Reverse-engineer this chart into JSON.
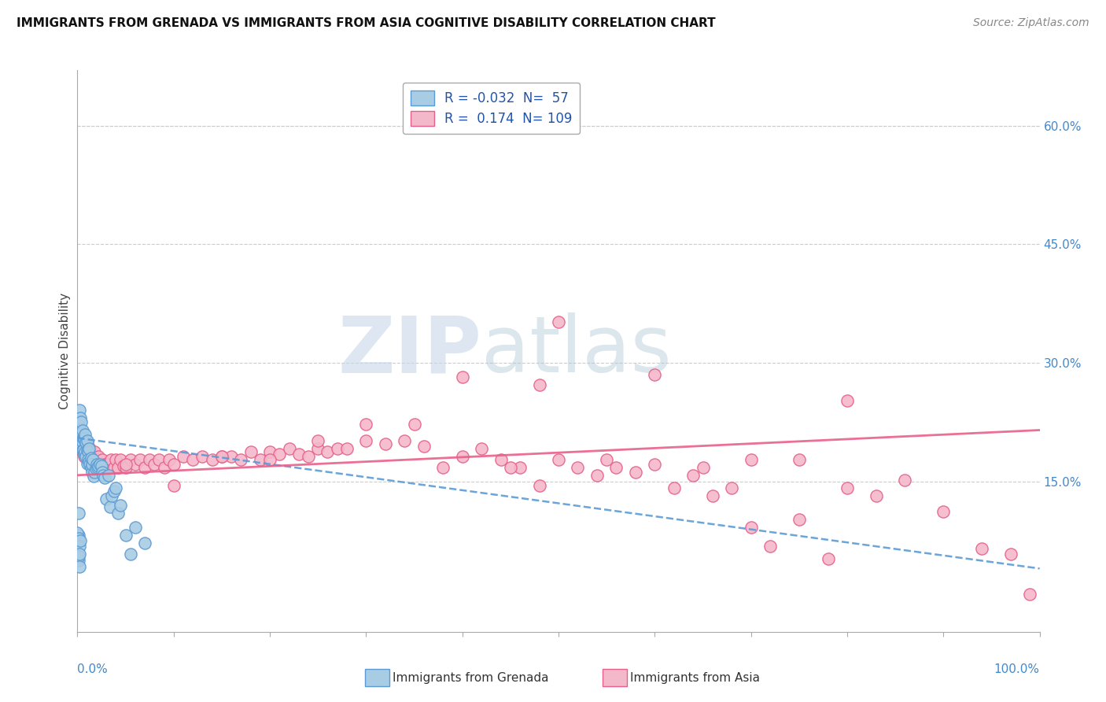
{
  "title": "IMMIGRANTS FROM GRENADA VS IMMIGRANTS FROM ASIA COGNITIVE DISABILITY CORRELATION CHART",
  "source": "Source: ZipAtlas.com",
  "ylabel": "Cognitive Disability",
  "y_ticks_right": [
    0.0,
    0.15,
    0.3,
    0.45,
    0.6
  ],
  "y_tick_labels_right": [
    "",
    "15.0%",
    "30.0%",
    "45.0%",
    "60.0%"
  ],
  "xlim": [
    0.0,
    1.0
  ],
  "ylim": [
    -0.04,
    0.67
  ],
  "legend_r1": "-0.032",
  "legend_n1": "57",
  "legend_r2": "0.174",
  "legend_n2": "109",
  "color_grenada_fill": "#a8cce4",
  "color_grenada_edge": "#5b9bd5",
  "color_asia_fill": "#f4b8cb",
  "color_asia_edge": "#e8608a",
  "color_grenada_line": "#5b9bd5",
  "color_asia_line": "#e8608a",
  "background_color": "#ffffff",
  "watermark_zip": "ZIP",
  "watermark_atlas": "atlas",
  "grenada_trend": [
    0.205,
    0.04
  ],
  "asia_trend": [
    0.158,
    0.215
  ],
  "grenada_x": [
    0.001,
    0.001,
    0.002,
    0.002,
    0.003,
    0.003,
    0.003,
    0.004,
    0.004,
    0.005,
    0.005,
    0.005,
    0.006,
    0.006,
    0.007,
    0.007,
    0.008,
    0.008,
    0.009,
    0.009,
    0.01,
    0.01,
    0.01,
    0.011,
    0.011,
    0.012,
    0.012,
    0.013,
    0.014,
    0.014,
    0.015,
    0.015,
    0.016,
    0.017,
    0.018,
    0.019,
    0.02,
    0.021,
    0.022,
    0.023,
    0.025,
    0.026,
    0.027,
    0.028,
    0.03,
    0.032,
    0.034,
    0.036,
    0.038,
    0.04,
    0.042,
    0.045,
    0.05,
    0.055,
    0.06,
    0.07,
    0.001
  ],
  "grenada_y": [
    0.22,
    0.2,
    0.24,
    0.21,
    0.23,
    0.215,
    0.2,
    0.225,
    0.195,
    0.215,
    0.2,
    0.19,
    0.205,
    0.19,
    0.205,
    0.185,
    0.21,
    0.188,
    0.2,
    0.182,
    0.202,
    0.19,
    0.173,
    0.188,
    0.178,
    0.192,
    0.175,
    0.172,
    0.18,
    0.168,
    0.162,
    0.172,
    0.178,
    0.157,
    0.162,
    0.167,
    0.172,
    0.168,
    0.17,
    0.172,
    0.17,
    0.162,
    0.158,
    0.155,
    0.128,
    0.158,
    0.118,
    0.132,
    0.138,
    0.142,
    0.11,
    0.12,
    0.082,
    0.058,
    0.092,
    0.072,
    0.082
  ],
  "grenada_y_low": [
    0.05,
    0.085,
    0.11,
    0.078,
    0.068,
    0.055,
    0.042,
    0.058,
    0.075
  ],
  "grenada_x_low": [
    0.001,
    0.0,
    0.001,
    0.001,
    0.002,
    0.001,
    0.002,
    0.002,
    0.003
  ],
  "asia_x": [
    0.001,
    0.002,
    0.003,
    0.004,
    0.005,
    0.006,
    0.007,
    0.008,
    0.009,
    0.01,
    0.011,
    0.012,
    0.013,
    0.014,
    0.015,
    0.016,
    0.017,
    0.018,
    0.019,
    0.02,
    0.022,
    0.024,
    0.026,
    0.028,
    0.03,
    0.032,
    0.035,
    0.038,
    0.04,
    0.042,
    0.045,
    0.048,
    0.05,
    0.055,
    0.06,
    0.065,
    0.07,
    0.075,
    0.08,
    0.085,
    0.09,
    0.095,
    0.1,
    0.11,
    0.12,
    0.13,
    0.14,
    0.15,
    0.16,
    0.17,
    0.18,
    0.19,
    0.2,
    0.21,
    0.22,
    0.23,
    0.24,
    0.25,
    0.26,
    0.27,
    0.28,
    0.3,
    0.32,
    0.34,
    0.36,
    0.38,
    0.4,
    0.42,
    0.44,
    0.46,
    0.48,
    0.5,
    0.52,
    0.54,
    0.56,
    0.58,
    0.6,
    0.62,
    0.64,
    0.66,
    0.68,
    0.7,
    0.72,
    0.75,
    0.78,
    0.8,
    0.83,
    0.86,
    0.9,
    0.94,
    0.97,
    0.99,
    0.4,
    0.5,
    0.48,
    0.35,
    0.25,
    0.15,
    0.05,
    0.1,
    0.2,
    0.3,
    0.6,
    0.8,
    0.7,
    0.65,
    0.55,
    0.45,
    0.75
  ],
  "asia_y": [
    0.195,
    0.205,
    0.195,
    0.2,
    0.188,
    0.192,
    0.182,
    0.196,
    0.188,
    0.2,
    0.188,
    0.188,
    0.192,
    0.178,
    0.182,
    0.178,
    0.178,
    0.188,
    0.172,
    0.178,
    0.182,
    0.172,
    0.178,
    0.172,
    0.172,
    0.168,
    0.178,
    0.168,
    0.178,
    0.168,
    0.178,
    0.17,
    0.168,
    0.178,
    0.172,
    0.178,
    0.168,
    0.178,
    0.172,
    0.178,
    0.168,
    0.178,
    0.172,
    0.182,
    0.178,
    0.182,
    0.178,
    0.182,
    0.182,
    0.178,
    0.188,
    0.178,
    0.188,
    0.185,
    0.192,
    0.185,
    0.182,
    0.192,
    0.188,
    0.192,
    0.192,
    0.202,
    0.198,
    0.202,
    0.195,
    0.168,
    0.182,
    0.192,
    0.178,
    0.168,
    0.145,
    0.178,
    0.168,
    0.158,
    0.168,
    0.162,
    0.172,
    0.142,
    0.158,
    0.132,
    0.142,
    0.092,
    0.068,
    0.102,
    0.052,
    0.142,
    0.132,
    0.152,
    0.112,
    0.065,
    0.058,
    0.008,
    0.282,
    0.352,
    0.272,
    0.222,
    0.202,
    0.182,
    0.172,
    0.145,
    0.178,
    0.222,
    0.285,
    0.252,
    0.178,
    0.168,
    0.178,
    0.168,
    0.178
  ]
}
